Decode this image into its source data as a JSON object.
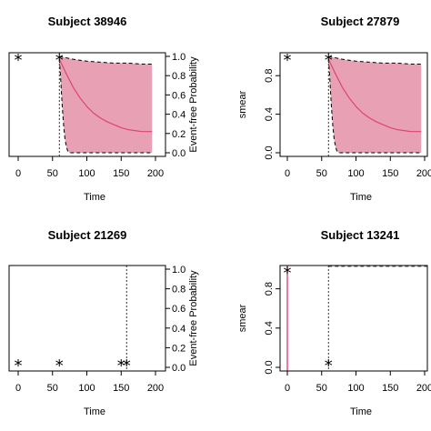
{
  "chart_data": [
    {
      "type": "area",
      "title": "Subject 38946",
      "xlabel": "Time",
      "ylabel": "",
      "y2label": "Event-free Probability",
      "xlim": [
        -5,
        200
      ],
      "ylim": [
        0,
        1
      ],
      "x_ticks": [
        0,
        50,
        100,
        150,
        200
      ],
      "y_ticks": [],
      "y2_ticks": [
        0.0,
        0.2,
        0.4,
        0.6,
        0.8,
        1.0
      ],
      "y2_tick_labels": [
        "0.0",
        "0.2",
        "0.4",
        "0.6",
        "0.8",
        "1.0"
      ],
      "vline_x": 60,
      "stars": [
        {
          "x": 0,
          "y": 0.97
        },
        {
          "x": 60,
          "y": 0.97
        }
      ],
      "series": [
        {
          "role": "probability",
          "x": [
            60,
            70,
            80,
            90,
            100,
            110,
            120,
            130,
            140,
            150,
            160,
            170,
            180,
            190,
            195
          ],
          "y": [
            0.97,
            0.82,
            0.68,
            0.57,
            0.48,
            0.41,
            0.36,
            0.32,
            0.29,
            0.26,
            0.24,
            0.23,
            0.22,
            0.22,
            0.22
          ]
        },
        {
          "role": "upper_band",
          "x": [
            60,
            80,
            100,
            120,
            140,
            160,
            180,
            195
          ],
          "y": [
            1.0,
            0.97,
            0.95,
            0.94,
            0.93,
            0.93,
            0.92,
            0.92
          ]
        },
        {
          "role": "lower_band",
          "x": [
            60,
            62,
            64,
            66,
            68,
            70,
            72,
            75,
            195
          ],
          "y": [
            0.97,
            0.75,
            0.5,
            0.3,
            0.15,
            0.07,
            0.02,
            0.0,
            0.0
          ]
        }
      ],
      "band_color": "#e8a0b4",
      "line_color": "#dd4477"
    },
    {
      "type": "area",
      "title": "Subject 27879",
      "xlabel": "Time",
      "ylabel": "smear",
      "y2label": "",
      "xlim": [
        -5,
        200
      ],
      "ylim": [
        0,
        1
      ],
      "x_ticks": [
        0,
        50,
        100,
        150,
        200
      ],
      "y_ticks": [
        0.0,
        0.4,
        0.8
      ],
      "y_tick_labels": [
        "0.0",
        "0.4",
        "0.8"
      ],
      "y2_ticks": [],
      "vline_x": 60,
      "stars": [
        {
          "x": 0,
          "y": 0.97
        },
        {
          "x": 60,
          "y": 0.97
        }
      ],
      "series": [
        {
          "role": "probability",
          "x": [
            60,
            70,
            80,
            90,
            100,
            110,
            120,
            130,
            140,
            150,
            160,
            170,
            180,
            190,
            195
          ],
          "y": [
            0.97,
            0.82,
            0.68,
            0.57,
            0.48,
            0.41,
            0.36,
            0.32,
            0.29,
            0.26,
            0.24,
            0.23,
            0.22,
            0.22,
            0.22
          ]
        },
        {
          "role": "upper_band",
          "x": [
            60,
            80,
            100,
            120,
            140,
            160,
            180,
            195
          ],
          "y": [
            1.0,
            0.97,
            0.95,
            0.94,
            0.93,
            0.93,
            0.92,
            0.92
          ]
        },
        {
          "role": "lower_band",
          "x": [
            60,
            62,
            64,
            66,
            68,
            70,
            72,
            75,
            195
          ],
          "y": [
            0.97,
            0.75,
            0.5,
            0.3,
            0.15,
            0.07,
            0.02,
            0.0,
            0.0
          ]
        }
      ],
      "band_color": "#e8a0b4",
      "line_color": "#dd4477"
    },
    {
      "type": "scatter",
      "title": "Subject 21269",
      "xlabel": "Time",
      "ylabel": "",
      "y2label": "Event-free Probability",
      "xlim": [
        -5,
        200
      ],
      "ylim": [
        0,
        1
      ],
      "x_ticks": [
        0,
        50,
        100,
        150,
        200
      ],
      "y_ticks": [],
      "y2_ticks": [
        0.0,
        0.2,
        0.4,
        0.6,
        0.8,
        1.0
      ],
      "y2_tick_labels": [
        "0.0",
        "0.2",
        "0.4",
        "0.6",
        "0.8",
        "1.0"
      ],
      "vline_x": 158,
      "stars": [
        {
          "x": 0,
          "y": 0.03
        },
        {
          "x": 60,
          "y": 0.03
        },
        {
          "x": 150,
          "y": 0.03
        },
        {
          "x": 158,
          "y": 0.03
        }
      ],
      "series": []
    },
    {
      "type": "scatter",
      "title": "Subject 13241",
      "xlabel": "Time",
      "ylabel": "smear",
      "y2label": "",
      "xlim": [
        -5,
        200
      ],
      "ylim": [
        0,
        1
      ],
      "x_ticks": [
        0,
        50,
        100,
        150,
        200
      ],
      "y_ticks": [
        0.0,
        0.4,
        0.8
      ],
      "y_tick_labels": [
        "0.0",
        "0.4",
        "0.8"
      ],
      "y2_ticks": [],
      "vline_x": 60,
      "stars": [
        {
          "x": 0,
          "y": 0.97
        },
        {
          "x": 60,
          "y": 0.03
        }
      ],
      "red_vline_x": 0,
      "dashed_top_from_x": 60,
      "series": []
    }
  ]
}
